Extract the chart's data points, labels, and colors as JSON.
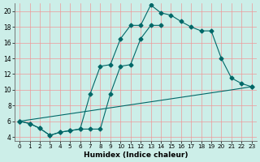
{
  "xlabel": "Humidex (Indice chaleur)",
  "bg_color": "#cceee8",
  "grid_color": "#ee9999",
  "line_color": "#006868",
  "xlim": [
    -0.5,
    23.5
  ],
  "ylim": [
    3.5,
    21.0
  ],
  "yticks": [
    4,
    6,
    8,
    10,
    12,
    14,
    16,
    18,
    20
  ],
  "xticks": [
    0,
    1,
    2,
    3,
    4,
    5,
    6,
    7,
    8,
    9,
    10,
    11,
    12,
    13,
    14,
    15,
    16,
    17,
    18,
    19,
    20,
    21,
    22,
    23
  ],
  "line1_x": [
    0,
    1,
    2,
    3,
    4,
    5,
    6,
    7,
    8,
    9,
    10,
    11,
    12,
    13,
    14,
    15,
    16,
    17,
    18,
    19,
    20,
    21,
    22,
    23
  ],
  "line1_y": [
    6.0,
    5.7,
    5.1,
    4.2,
    4.6,
    4.8,
    5.0,
    9.5,
    13.0,
    13.2,
    16.5,
    18.2,
    18.2,
    20.8,
    19.8,
    19.5,
    18.7,
    18.0,
    17.5,
    17.5,
    14.0,
    11.5,
    10.8,
    10.4
  ],
  "line2_x": [
    0,
    1,
    2,
    3,
    4,
    5,
    6,
    7,
    8,
    9,
    10,
    11,
    12,
    13,
    14
  ],
  "line2_y": [
    6.0,
    5.7,
    5.1,
    4.2,
    4.6,
    4.8,
    5.0,
    5.0,
    5.0,
    9.5,
    13.0,
    13.2,
    16.5,
    18.2,
    18.2
  ],
  "line3_x": [
    0,
    23
  ],
  "line3_y": [
    6.0,
    10.4
  ],
  "line3_mid_x": [
    0,
    1,
    2,
    3,
    4,
    5,
    6,
    7,
    8,
    9,
    10,
    11,
    12,
    13,
    14,
    15,
    16,
    17,
    18,
    19,
    20,
    21,
    22,
    23
  ],
  "line3_mid_y": [
    6.0,
    6.19,
    6.38,
    6.57,
    6.76,
    6.95,
    7.14,
    7.33,
    7.52,
    7.71,
    7.9,
    8.09,
    8.28,
    8.47,
    8.66,
    8.85,
    9.04,
    9.23,
    9.42,
    9.61,
    9.8,
    9.99,
    10.19,
    10.4
  ]
}
